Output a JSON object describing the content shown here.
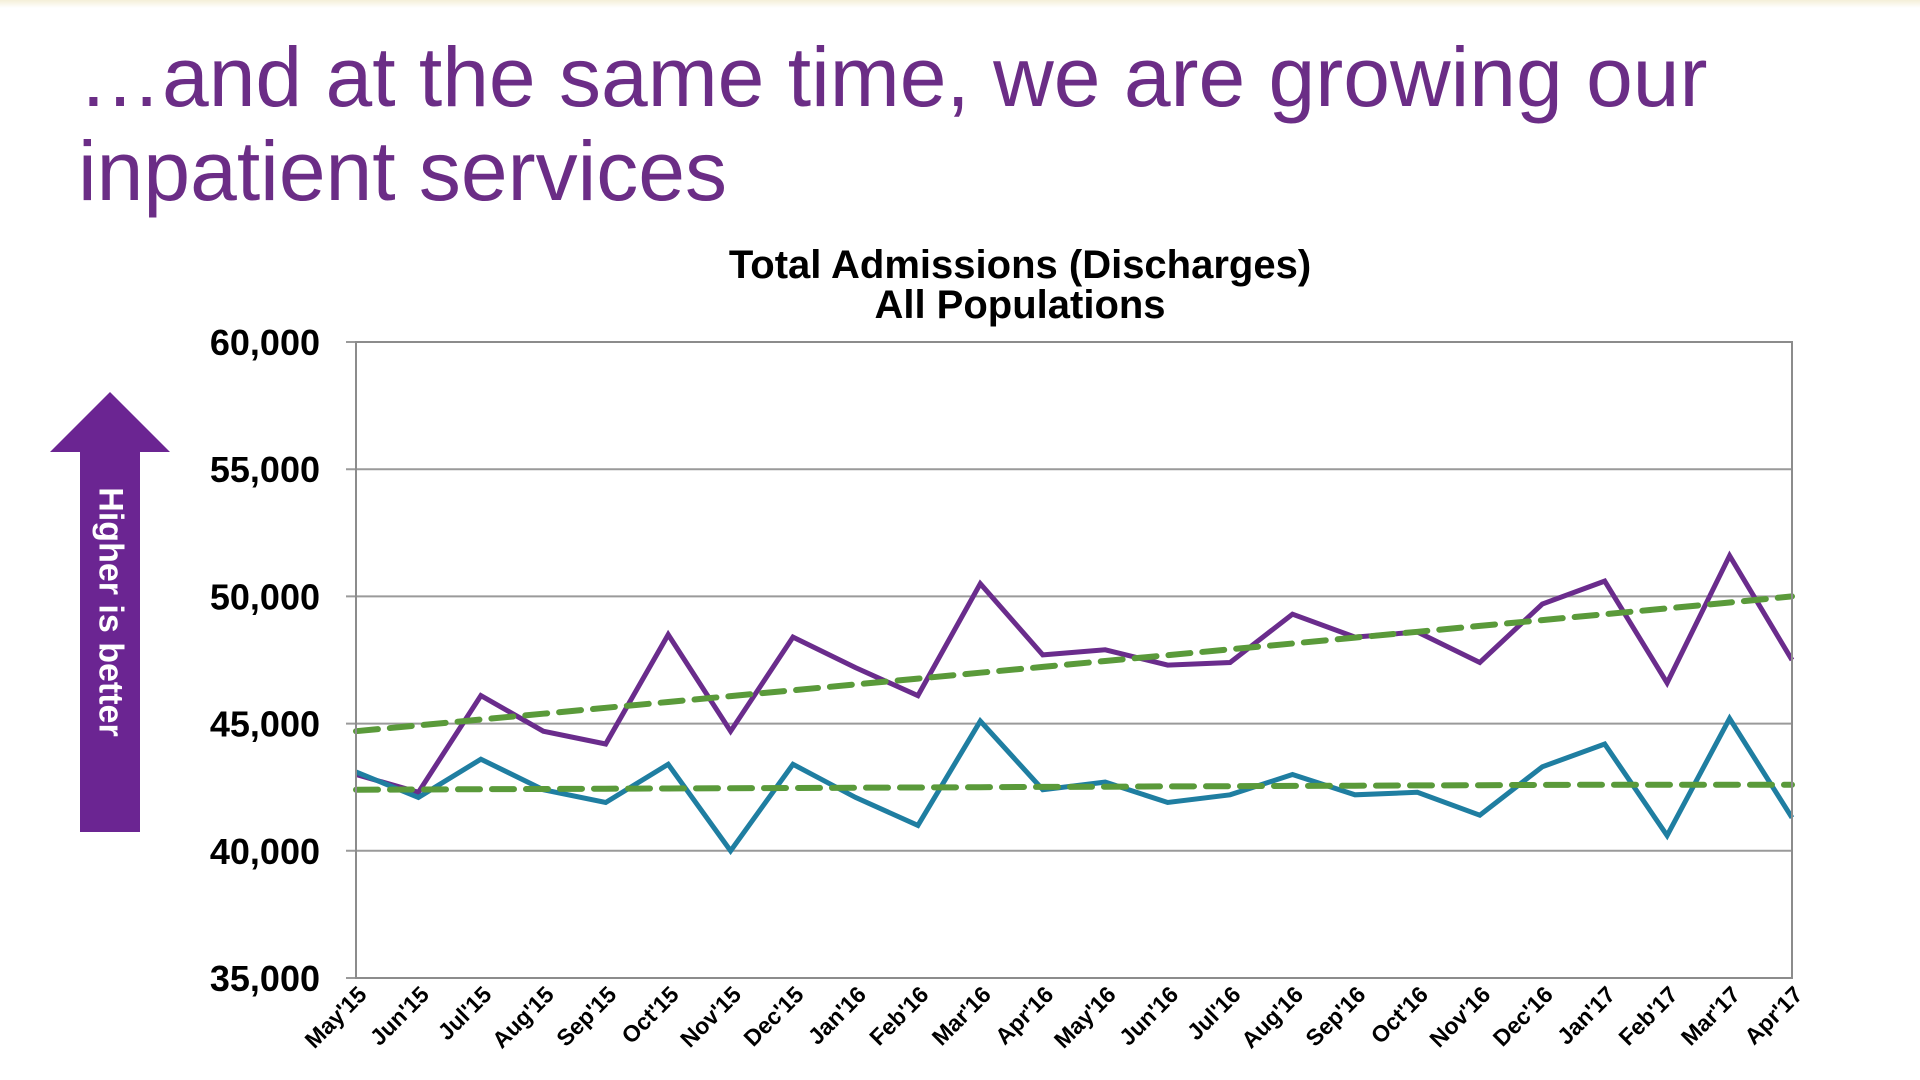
{
  "slide": {
    "title_line1": "…and at the same time, we are growing our",
    "title_line2": "inpatient services",
    "arrow_label": "Higher is better",
    "arrow_color": "#6b2592"
  },
  "chart_data": {
    "type": "line",
    "title": "Total Admissions (Discharges)",
    "subtitle": "All Populations",
    "xlabel": "",
    "ylabel": "",
    "ylim": [
      35000,
      60000
    ],
    "yticks": [
      35000,
      40000,
      45000,
      50000,
      55000,
      60000
    ],
    "ytick_labels": [
      "35,000",
      "40,000",
      "45,000",
      "50,000",
      "55,000",
      "60,000"
    ],
    "grid": true,
    "legend": "none",
    "categories": [
      "May'15",
      "Jun'15",
      "Jul'15",
      "Aug'15",
      "Sep'15",
      "Oct'15",
      "Nov'15",
      "Dec'15",
      "Jan'16",
      "Feb'16",
      "Mar'16",
      "Apr'16",
      "May'16",
      "Jun'16",
      "Jul'16",
      "Aug'16",
      "Sep'16",
      "Oct'16",
      "Nov'16",
      "Dec'16",
      "Jan'17",
      "Feb'17",
      "Mar'17",
      "Apr'17"
    ],
    "series": [
      {
        "name": "Total admissions (upper series)",
        "color": "#6a2c8c",
        "style": "solid",
        "values": [
          43000,
          42300,
          46100,
          44700,
          44200,
          48500,
          44700,
          48400,
          47200,
          46100,
          50500,
          47700,
          47900,
          47300,
          47400,
          49300,
          48400,
          48600,
          47400,
          49700,
          50600,
          46600,
          51600,
          47500
        ]
      },
      {
        "name": "Total admissions (lower series)",
        "color": "#1f7ea1",
        "style": "solid",
        "values": [
          43100,
          42100,
          43600,
          42400,
          41900,
          43400,
          40000,
          43400,
          42100,
          41000,
          45100,
          42400,
          42700,
          41900,
          42200,
          43000,
          42200,
          42300,
          41400,
          43300,
          44200,
          40600,
          45200,
          41300
        ]
      },
      {
        "name": "Upper series trend",
        "color": "#5a9a3a",
        "style": "dashed",
        "values": [
          44700,
          44930,
          45160,
          45390,
          45620,
          45850,
          46080,
          46310,
          46540,
          46770,
          47000,
          47230,
          47460,
          47690,
          47920,
          48150,
          48380,
          48610,
          48840,
          49070,
          49300,
          49530,
          49760,
          50000
        ]
      },
      {
        "name": "Lower series trend",
        "color": "#5a9a3a",
        "style": "dashed",
        "values": [
          42400,
          42410,
          42420,
          42430,
          42440,
          42450,
          42460,
          42470,
          42480,
          42490,
          42500,
          42510,
          42520,
          42530,
          42540,
          42550,
          42560,
          42570,
          42580,
          42590,
          42600,
          42600,
          42600,
          42600
        ]
      }
    ]
  }
}
